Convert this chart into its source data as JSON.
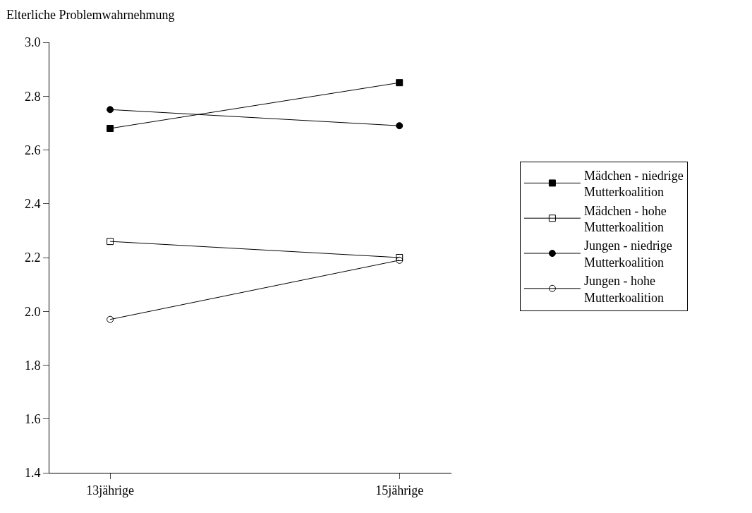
{
  "chart_data": {
    "type": "line",
    "ylabel": "Elterliche Problemwahrnehmung",
    "categories": [
      "13jährige",
      "15jährige"
    ],
    "series": [
      {
        "name": "Mädchen - niedrige Mutterkoalition",
        "color": "#000000",
        "marker": "square",
        "values": [
          2.68,
          2.85
        ]
      },
      {
        "name": "Mädchen - hohe Mutterkoalition",
        "color": "#000000",
        "marker": "square",
        "values": [
          2.26,
          2.2
        ]
      },
      {
        "name": "Jungen - niedrige Mutterkoalition",
        "color": "#000000",
        "marker": "circle",
        "values": [
          2.75,
          2.69
        ]
      },
      {
        "name": "Jungen - hohe Mutterkoalition",
        "color": "#000000",
        "marker": "circle",
        "values": [
          1.97,
          2.19
        ]
      }
    ],
    "ylim": [
      1.4,
      3.0
    ],
    "yticks": [
      1.4,
      1.6,
      1.8,
      {
        "value": 2.0,
        "label": "2.0"
      },
      2.2,
      2.4,
      2.6,
      2.8,
      {
        "value": 3.0,
        "label": "3.0"
      }
    ],
    "legend": "right",
    "line_style": "solid"
  }
}
